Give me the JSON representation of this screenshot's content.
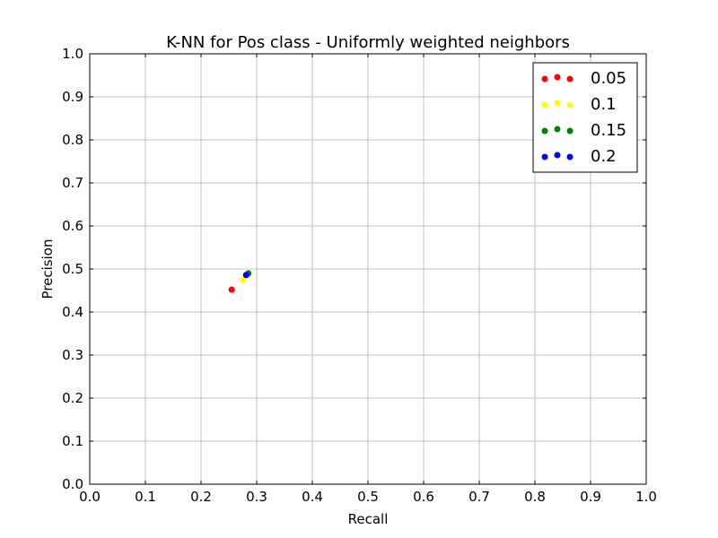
{
  "chart_data": {
    "type": "scatter",
    "title": "K-NN for Pos class - Uniformly weighted neighbors",
    "xlabel": "Recall",
    "ylabel": "Precision",
    "xlim": [
      0.0,
      1.0
    ],
    "ylim": [
      0.0,
      1.0
    ],
    "xticks": [
      "0.0",
      "0.1",
      "0.2",
      "0.3",
      "0.4",
      "0.5",
      "0.6",
      "0.7",
      "0.8",
      "0.9",
      "1.0"
    ],
    "yticks": [
      "0.0",
      "0.1",
      "0.2",
      "0.3",
      "0.4",
      "0.5",
      "0.6",
      "0.7",
      "0.8",
      "0.9",
      "1.0"
    ],
    "grid": true,
    "legend_position": "top-right",
    "series": [
      {
        "name": "0.05",
        "color": "#ff0000",
        "points": [
          {
            "x": 0.255,
            "y": 0.452
          }
        ]
      },
      {
        "name": "0.1",
        "color": "#ffff00",
        "points": [
          {
            "x": 0.275,
            "y": 0.475
          }
        ]
      },
      {
        "name": "0.15",
        "color": "#008000",
        "points": [
          {
            "x": 0.285,
            "y": 0.49
          }
        ]
      },
      {
        "name": "0.2",
        "color": "#0000ff",
        "points": [
          {
            "x": 0.281,
            "y": 0.486
          }
        ]
      }
    ]
  }
}
